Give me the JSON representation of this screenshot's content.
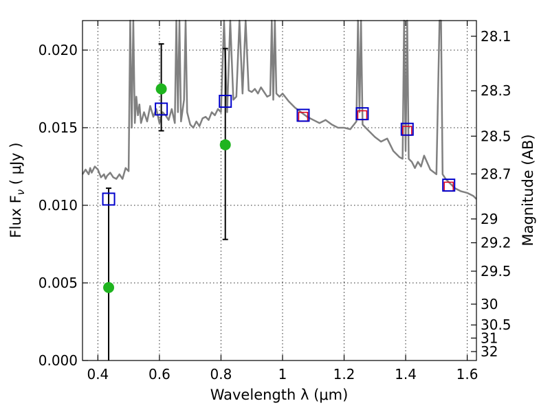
{
  "chart_data": {
    "type": "scatter",
    "xlabel": "Wavelength  λ (μm)",
    "ylabel": "Flux  F",
    "ylabel_subscript": "ν",
    "ylabel_units": "  ( μJy )",
    "y2label": "Magnitude (AB)",
    "xlim": [
      0.35,
      1.63
    ],
    "ylim": [
      0.0,
      0.0219
    ],
    "grid": true,
    "xticks": [
      0.4,
      0.6,
      0.8,
      1.0,
      1.2,
      1.4,
      1.6
    ],
    "xtick_labels": [
      "0.4",
      "0.6",
      "0.8",
      "1",
      "1.2",
      "1.4",
      "1.6"
    ],
    "yticks": [
      0.0,
      0.005,
      0.01,
      0.015,
      0.02
    ],
    "ytick_labels": [
      "0.000",
      "0.005",
      "0.010",
      "0.015",
      "0.020"
    ],
    "y2ticks": [
      28.1,
      28.3,
      28.5,
      28.7,
      29,
      29.2,
      29.5,
      30,
      30.5,
      31,
      32
    ],
    "y2tick_labels": [
      "28.1",
      "28.3",
      "28.5",
      "28.7",
      "29",
      "29.2",
      "29.5",
      "30",
      "30.5",
      "31",
      "32"
    ],
    "colors": {
      "spectrum": "#808080",
      "observed": "#1fb41f",
      "model_box": "#0000cc",
      "model_inner": "#e0001a",
      "errorbar": "#000000"
    },
    "series": [
      {
        "type": "line",
        "x": [
          0.35,
          0.36,
          0.37,
          0.375,
          0.38,
          0.39,
          0.4,
          0.41,
          0.42,
          0.425,
          0.43,
          0.44,
          0.45,
          0.46,
          0.47,
          0.48,
          0.49,
          0.5,
          0.505,
          0.51,
          0.515,
          0.52,
          0.525,
          0.53,
          0.535,
          0.54,
          0.55,
          0.56,
          0.57,
          0.58,
          0.59,
          0.6,
          0.61,
          0.62,
          0.63,
          0.64,
          0.65,
          0.655,
          0.66,
          0.665,
          0.67,
          0.68,
          0.685,
          0.69,
          0.7,
          0.71,
          0.72,
          0.73,
          0.74,
          0.75,
          0.76,
          0.77,
          0.78,
          0.79,
          0.8,
          0.81,
          0.82,
          0.83,
          0.84,
          0.85,
          0.86,
          0.87,
          0.88,
          0.89,
          0.9,
          0.91,
          0.92,
          0.93,
          0.94,
          0.95,
          0.96,
          0.965,
          0.97,
          0.975,
          0.98,
          0.99,
          1.0,
          1.02,
          1.04,
          1.06,
          1.08,
          1.1,
          1.12,
          1.14,
          1.16,
          1.18,
          1.2,
          1.22,
          1.24,
          1.245,
          1.25,
          1.255,
          1.26,
          1.28,
          1.3,
          1.32,
          1.34,
          1.36,
          1.38,
          1.39,
          1.395,
          1.4,
          1.405,
          1.41,
          1.42,
          1.43,
          1.44,
          1.45,
          1.46,
          1.48,
          1.5,
          1.51,
          1.515,
          1.52,
          1.53,
          1.54,
          1.56,
          1.58,
          1.6,
          1.62,
          1.63
        ],
        "y": [
          0.012,
          0.0123,
          0.012,
          0.0124,
          0.0121,
          0.0125,
          0.0123,
          0.0118,
          0.012,
          0.0117,
          0.0119,
          0.0121,
          0.0118,
          0.0117,
          0.012,
          0.0117,
          0.0124,
          0.0122,
          0.0219,
          0.015,
          0.0219,
          0.0153,
          0.017,
          0.0158,
          0.0165,
          0.0153,
          0.016,
          0.0154,
          0.0164,
          0.0157,
          0.0162,
          0.0153,
          0.016,
          0.0158,
          0.0155,
          0.0162,
          0.0153,
          0.0219,
          0.016,
          0.0219,
          0.0154,
          0.0168,
          0.0219,
          0.016,
          0.0152,
          0.015,
          0.0154,
          0.0151,
          0.0156,
          0.0157,
          0.0155,
          0.016,
          0.0158,
          0.0162,
          0.016,
          0.0219,
          0.016,
          0.0219,
          0.0168,
          0.017,
          0.0219,
          0.0172,
          0.0219,
          0.0174,
          0.0173,
          0.0175,
          0.0172,
          0.0176,
          0.0173,
          0.017,
          0.0171,
          0.0219,
          0.0168,
          0.0219,
          0.0172,
          0.017,
          0.0172,
          0.0167,
          0.0163,
          0.016,
          0.0157,
          0.0155,
          0.0153,
          0.0155,
          0.0152,
          0.015,
          0.015,
          0.0149,
          0.0154,
          0.0219,
          0.016,
          0.0219,
          0.0152,
          0.0148,
          0.0144,
          0.0141,
          0.0143,
          0.0135,
          0.0131,
          0.013,
          0.0219,
          0.0135,
          0.0219,
          0.013,
          0.0128,
          0.0124,
          0.0128,
          0.0125,
          0.0132,
          0.0123,
          0.012,
          0.0219,
          0.0219,
          0.012,
          0.0117,
          0.0115,
          0.0111,
          0.0109,
          0.0108,
          0.0106,
          0.0104
        ]
      },
      {
        "type": "scatter",
        "marker": "circle",
        "x": [
          0.435,
          0.606,
          0.814
        ],
        "y": [
          0.0047,
          0.0175,
          0.0139
        ]
      },
      {
        "type": "errorbar",
        "x": [
          0.435,
          0.606,
          0.814
        ],
        "y_low": [
          0.0,
          0.0148,
          0.0078
        ],
        "y_high": [
          0.0111,
          0.0204,
          0.0201
        ]
      },
      {
        "type": "scatter",
        "marker": "square",
        "x": [
          0.435,
          0.606,
          0.814,
          1.067,
          1.259,
          1.405,
          1.54
        ],
        "y": [
          0.0104,
          0.0162,
          0.0167,
          0.0158,
          0.0159,
          0.0149,
          0.0113
        ]
      },
      {
        "type": "scatter",
        "marker": "square-inner",
        "x": [
          1.067,
          1.259,
          1.405,
          1.54
        ],
        "y": [
          0.0157,
          0.0158,
          0.0148,
          0.0112
        ]
      }
    ]
  }
}
